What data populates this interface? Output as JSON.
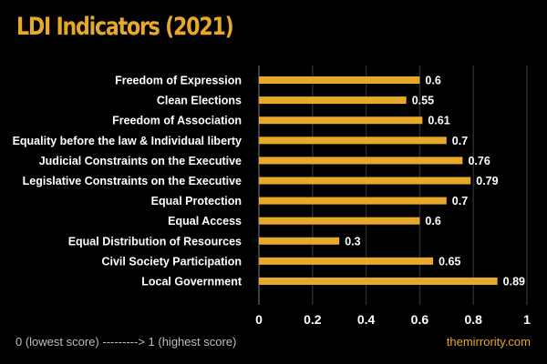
{
  "chart_data": {
    "type": "bar",
    "orientation": "horizontal",
    "title": "LDI Indicators (2021)",
    "categories": [
      "Freedom of Expression",
      "Clean Elections",
      "Freedom of Association",
      "Equality before the law & Individual liberty",
      "Judicial Constraints on the Executive",
      "Legislative Constraints on the Executive",
      "Equal Protection",
      "Equal Access",
      "Equal Distribution of Resources",
      "Civil Society Participation",
      "Local Government"
    ],
    "values": [
      0.6,
      0.55,
      0.61,
      0.7,
      0.76,
      0.79,
      0.7,
      0.6,
      0.3,
      0.65,
      0.89
    ],
    "data_labels": [
      "0.6",
      "0.55",
      "0.61",
      "0.7",
      "0.76",
      "0.79",
      "0.7",
      "0.6",
      "0.3",
      "0.65",
      "0.89"
    ],
    "xlim": [
      0,
      1
    ],
    "x_ticks": [
      "0",
      "0.2",
      "0.4",
      "0.6",
      "0.8",
      "1"
    ],
    "grid": true,
    "bar_color": "#e8a82a",
    "background": "#000000"
  },
  "footer": {
    "note": "0 (lowest score) ---------> 1 (highest score)",
    "source": "themirrority.com"
  }
}
